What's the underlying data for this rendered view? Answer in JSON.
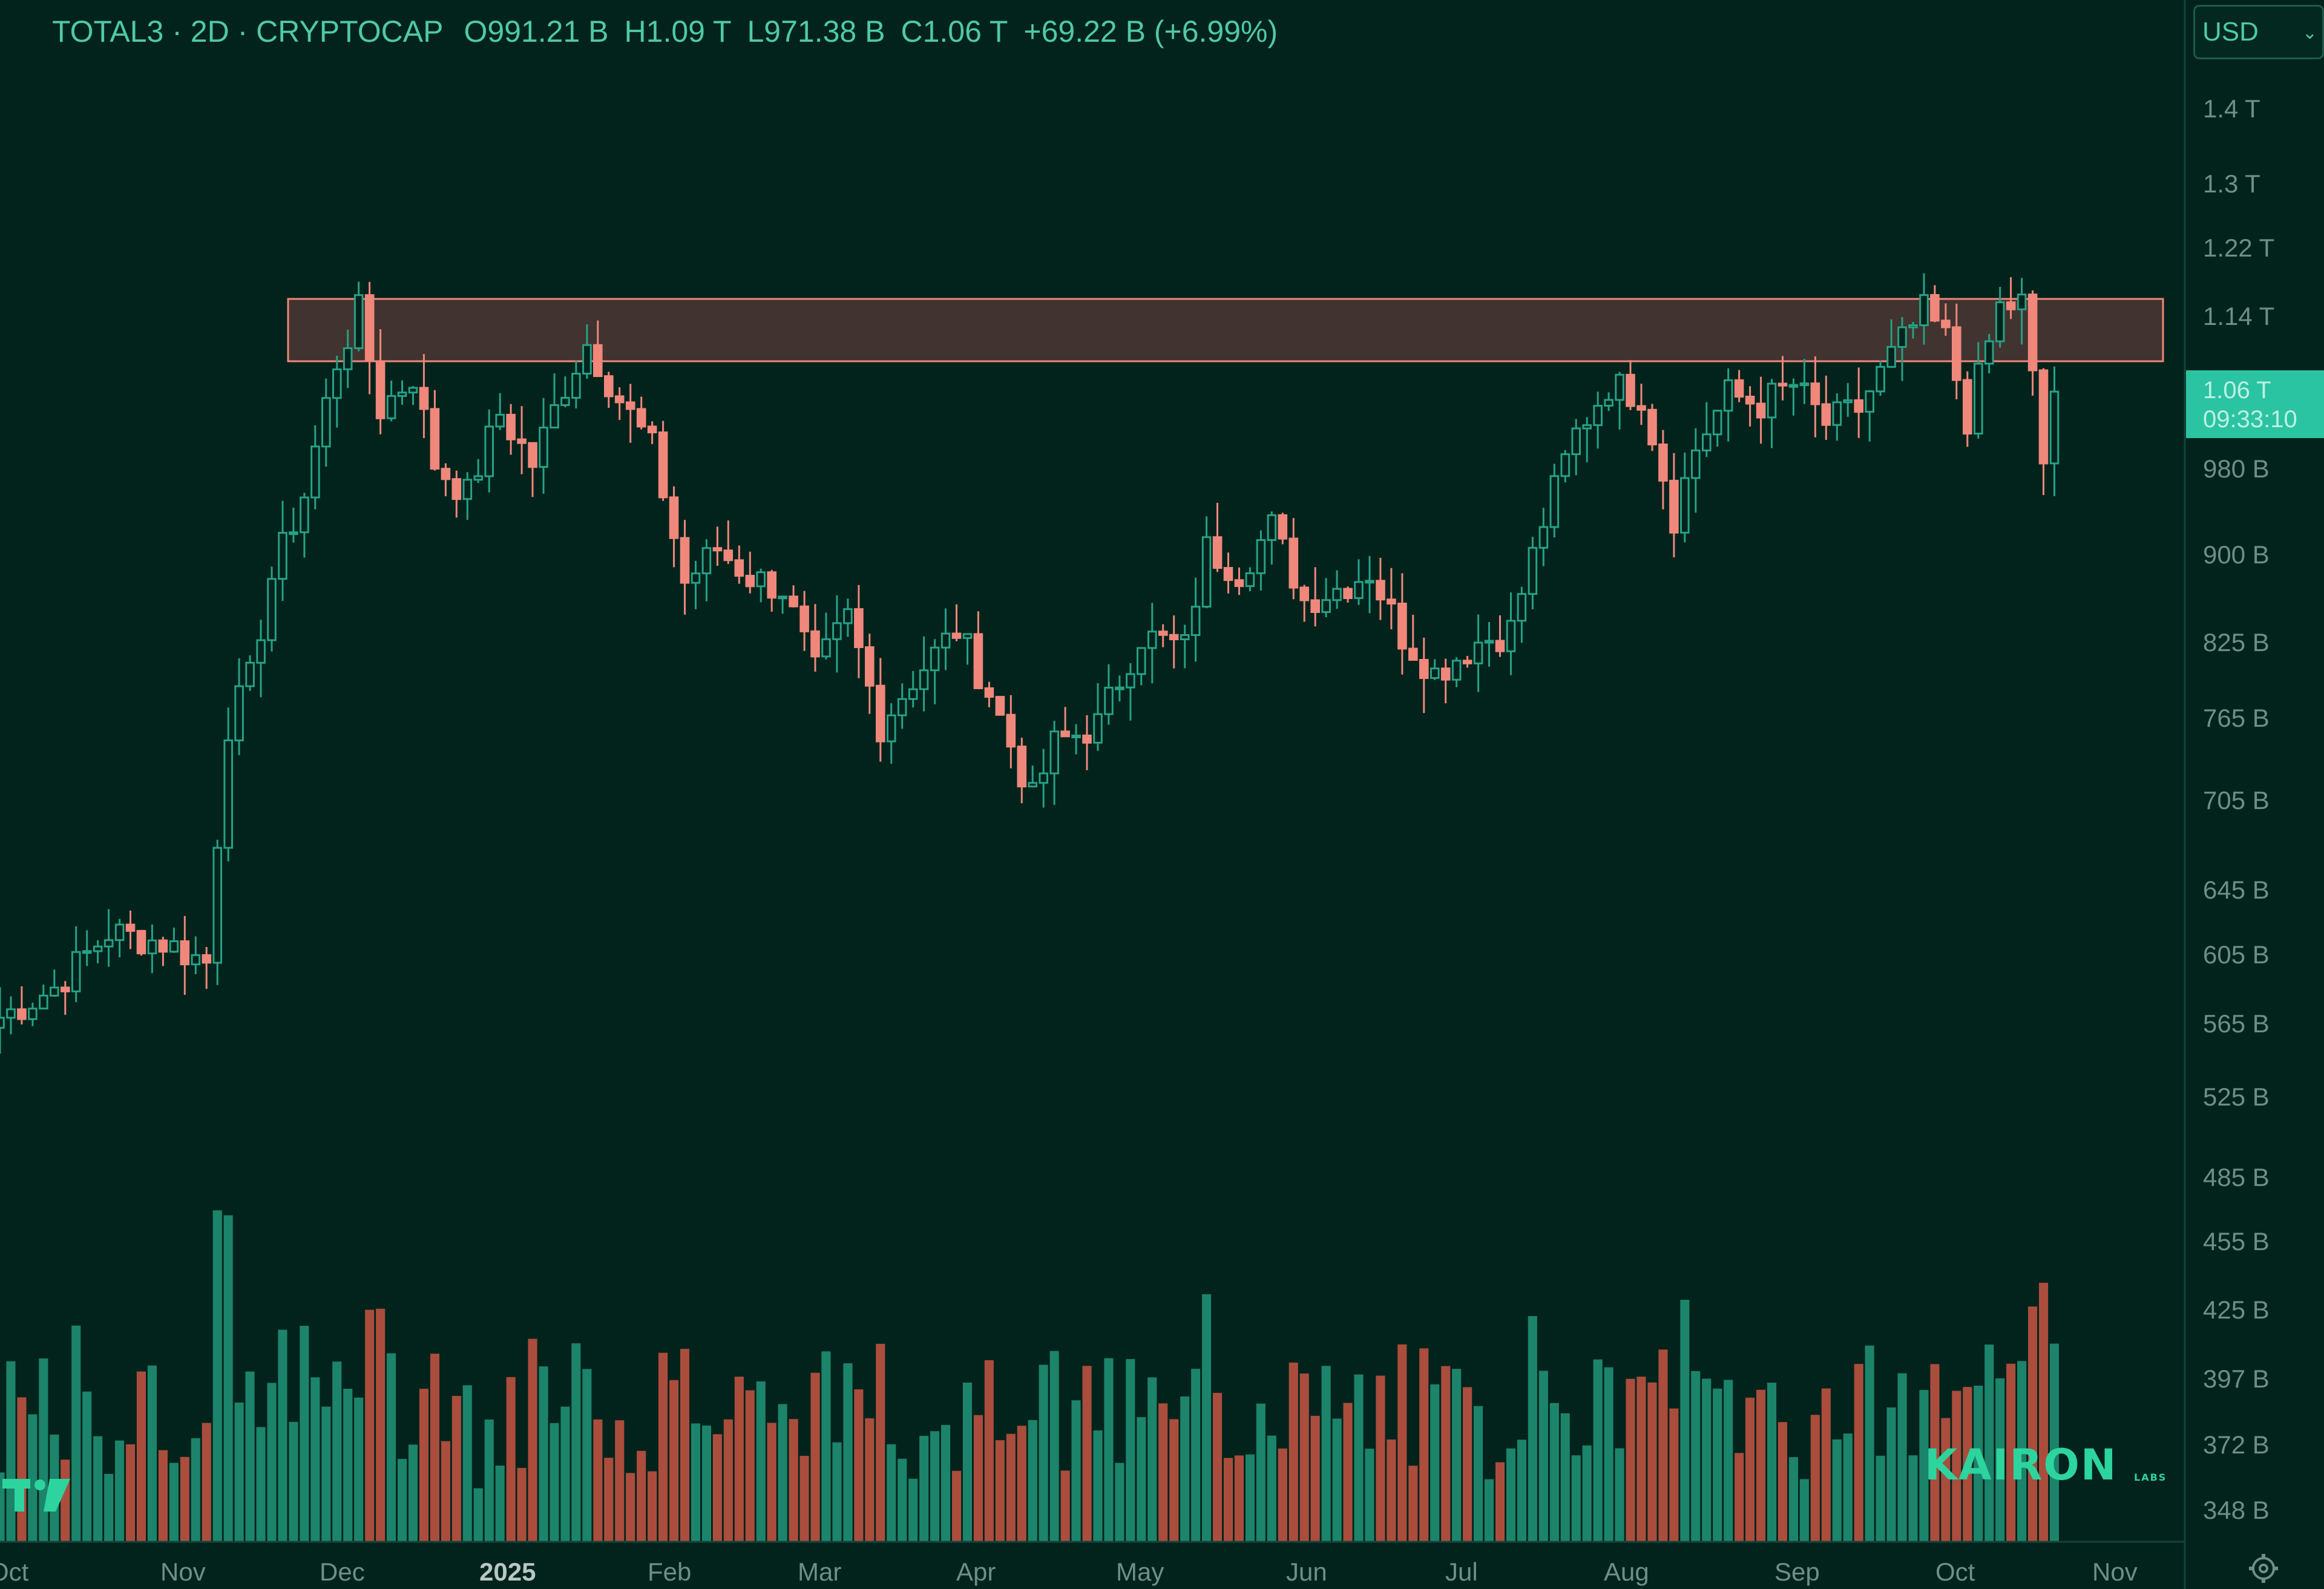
{
  "header": {
    "symbol": "TOTAL3 · 2D · CRYPTOCAP",
    "open": "O991.21 B",
    "high": "H1.09 T",
    "low": "L971.38 B",
    "close": "C1.06 T",
    "change": "+69.22 B (+6.99%)"
  },
  "currency": {
    "label": "USD",
    "icon": "chevron-down-icon"
  },
  "price_scale": {
    "ticks": [
      "1.4 T",
      "1.3 T",
      "1.22 T",
      "1.14 T",
      "980 B",
      "900 B",
      "825 B",
      "765 B",
      "705 B",
      "645 B",
      "605 B",
      "565 B",
      "525 B",
      "485 B",
      "455 B",
      "425 B",
      "397 B",
      "372 B",
      "348 B"
    ],
    "last_price": "1.06 T",
    "countdown": "09:33:10"
  },
  "time_axis": [
    "Oct",
    "Nov",
    "Dec",
    "2025",
    "Feb",
    "Mar",
    "Apr",
    "May",
    "Jun",
    "Jul",
    "Aug",
    "Sep",
    "Oct",
    "Nov"
  ],
  "watermark": {
    "brand": "KAIRON",
    "sub": "LABS"
  },
  "icons": {
    "settings": "gear-icon",
    "platform_logo": "tradingview-logo-icon"
  },
  "colors": {
    "background": "#02231c",
    "up": "#26a186",
    "down": "#f0877b",
    "zone": "#f0877b",
    "text": "#4fc9a6"
  },
  "chart_data": {
    "type": "candlestick",
    "title": "TOTAL3 · 2D · CRYPTOCAP",
    "interval": "2D",
    "scale": "log",
    "y_unit": "USD",
    "ylim": [
      330000000000,
      1480000000000
    ],
    "xlim": [
      "2024-09-29",
      "2025-11-05"
    ],
    "grid": false,
    "resistance_zone": {
      "low": 1090000000000,
      "high": 1160000000000,
      "from": "2024-11-21",
      "to": "2025-11-01"
    },
    "candles_anchor_prices_B": [
      [
        "2024-09-29",
        568
      ],
      [
        "2024-10-09",
        585
      ],
      [
        "2024-10-19",
        618
      ],
      [
        "2024-10-29",
        612
      ],
      [
        "2024-11-06",
        600
      ],
      [
        "2024-11-10",
        760
      ],
      [
        "2024-11-14",
        795
      ],
      [
        "2024-11-18",
        880
      ],
      [
        "2024-11-24",
        955
      ],
      [
        "2024-11-30",
        1090
      ],
      [
        "2024-12-04",
        1145
      ],
      [
        "2024-12-08",
        1040
      ],
      [
        "2024-12-14",
        1075
      ],
      [
        "2024-12-18",
        985
      ],
      [
        "2024-12-24",
        955
      ],
      [
        "2024-12-30",
        1035
      ],
      [
        "2025-01-05",
        985
      ],
      [
        "2025-01-11",
        1065
      ],
      [
        "2025-01-15",
        1110
      ],
      [
        "2025-01-21",
        1050
      ],
      [
        "2025-01-27",
        1000
      ],
      [
        "2025-02-02",
        875
      ],
      [
        "2025-02-08",
        905
      ],
      [
        "2025-02-14",
        880
      ],
      [
        "2025-02-20",
        870
      ],
      [
        "2025-02-26",
        800
      ],
      [
        "2025-03-04",
        845
      ],
      [
        "2025-03-10",
        760
      ],
      [
        "2025-03-16",
        795
      ],
      [
        "2025-03-24",
        835
      ],
      [
        "2025-03-30",
        785
      ],
      [
        "2025-04-07",
        705
      ],
      [
        "2025-04-11",
        745
      ],
      [
        "2025-04-19",
        760
      ],
      [
        "2025-04-27",
        830
      ],
      [
        "2025-05-05",
        820
      ],
      [
        "2025-05-09",
        905
      ],
      [
        "2025-05-15",
        885
      ],
      [
        "2025-05-21",
        925
      ],
      [
        "2025-05-27",
        860
      ],
      [
        "2025-06-02",
        870
      ],
      [
        "2025-06-08",
        885
      ],
      [
        "2025-06-14",
        830
      ],
      [
        "2025-06-20",
        800
      ],
      [
        "2025-06-28",
        825
      ],
      [
        "2025-07-04",
        835
      ],
      [
        "2025-07-10",
        930
      ],
      [
        "2025-07-16",
        1015
      ],
      [
        "2025-07-22",
        1065
      ],
      [
        "2025-07-28",
        1055
      ],
      [
        "2025-08-03",
        935
      ],
      [
        "2025-08-07",
        1000
      ],
      [
        "2025-08-13",
        1055
      ],
      [
        "2025-08-19",
        1045
      ],
      [
        "2025-08-25",
        1065
      ],
      [
        "2025-08-31",
        1025
      ],
      [
        "2025-09-06",
        1040
      ],
      [
        "2025-09-12",
        1095
      ],
      [
        "2025-09-18",
        1145
      ],
      [
        "2025-09-22",
        1115
      ],
      [
        "2025-09-26",
        1030
      ],
      [
        "2025-10-02",
        1150
      ],
      [
        "2025-10-06",
        1155
      ],
      [
        "2025-10-10",
        985
      ],
      [
        "2025-10-12",
        1060
      ]
    ],
    "volume": {
      "shown": true,
      "relative_max": 1.0
    }
  }
}
